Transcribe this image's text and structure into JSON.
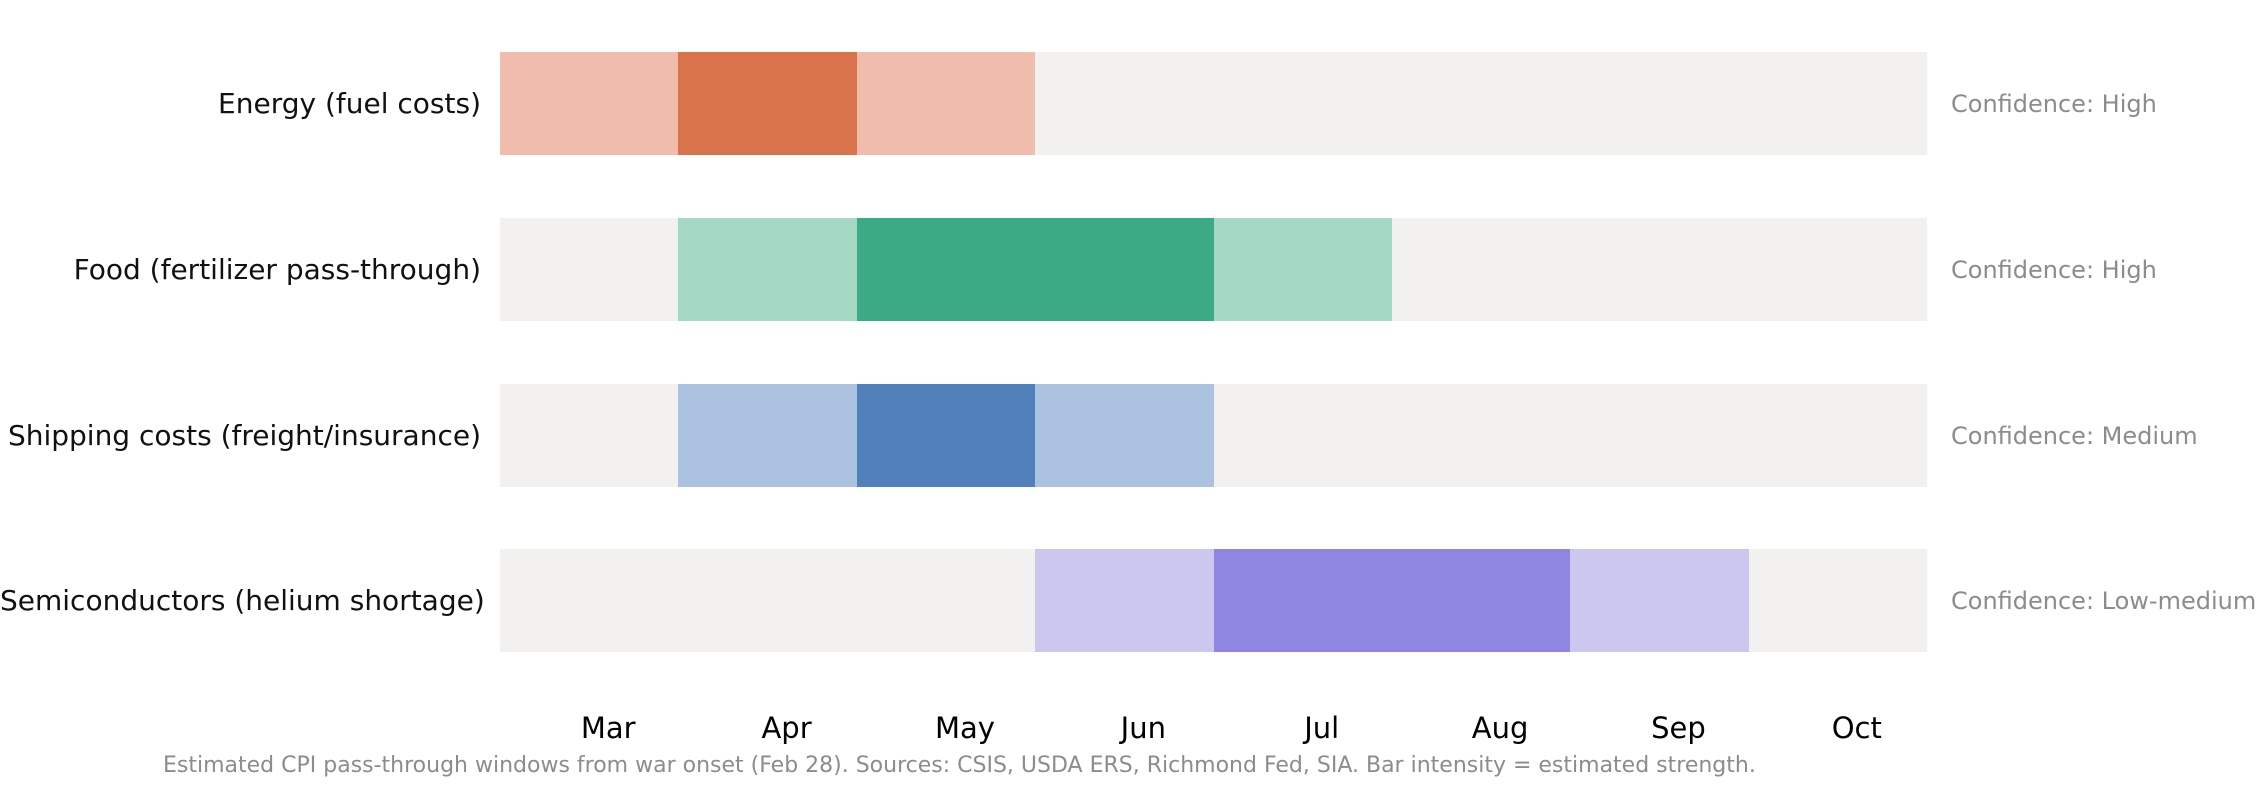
{
  "chart_data": {
    "type": "gantt",
    "title": "",
    "description": "Timeline heatmap of estimated CPI pass-through windows by category, months March through October. Cell intensity encodes estimated strength: 0 = none (empty track), 1 = moderate (light tint), 2 = strong (saturated color).",
    "categories": [
      "Mar",
      "Apr",
      "May",
      "Jun",
      "Jul",
      "Aug",
      "Sep",
      "Oct"
    ],
    "xlabel": "",
    "ylabel": "",
    "grid": false,
    "legend_position": "none",
    "track_color": "#f2f1ef",
    "intensity_scale": {
      "0": "none",
      "1": "moderate",
      "2": "strong"
    },
    "rows": [
      {
        "label": "Energy (fuel costs)",
        "confidence": "Confidence: High",
        "intensity_by_month": [
          1,
          2,
          1,
          0,
          0,
          0,
          0,
          0
        ],
        "color_strong": "#d9734c",
        "color_moderate": "#f0bcab"
      },
      {
        "label": "Food (fertilizer pass-through)",
        "confidence": "Confidence: High",
        "intensity_by_month": [
          0,
          1,
          2,
          2,
          1,
          0,
          0,
          0
        ],
        "color_strong": "#3cab85",
        "color_moderate": "#a5d8c3"
      },
      {
        "label": "Shipping costs (freight/insurance)",
        "confidence": "Confidence: Medium",
        "intensity_by_month": [
          0,
          1,
          2,
          1,
          0,
          0,
          0,
          0
        ],
        "color_strong": "#5080ba",
        "color_moderate": "#abc2e0"
      },
      {
        "label": "Semiconductors (helium shortage)",
        "confidence": "Confidence: Low-medium",
        "intensity_by_month": [
          0,
          0,
          0,
          1,
          2,
          2,
          1,
          0
        ],
        "color_strong": "#8e86e1",
        "color_moderate": "#cbc7ef"
      }
    ],
    "caption": "Estimated CPI pass-through windows from war onset (Feb 28). Sources: CSIS, USDA ERS, Richmond Fed, SIA. Bar intensity = estimated strength.",
    "text_colors": {
      "row_label": "#111111",
      "axis_label": "#000000",
      "annotation": "#8c8c8c"
    }
  }
}
